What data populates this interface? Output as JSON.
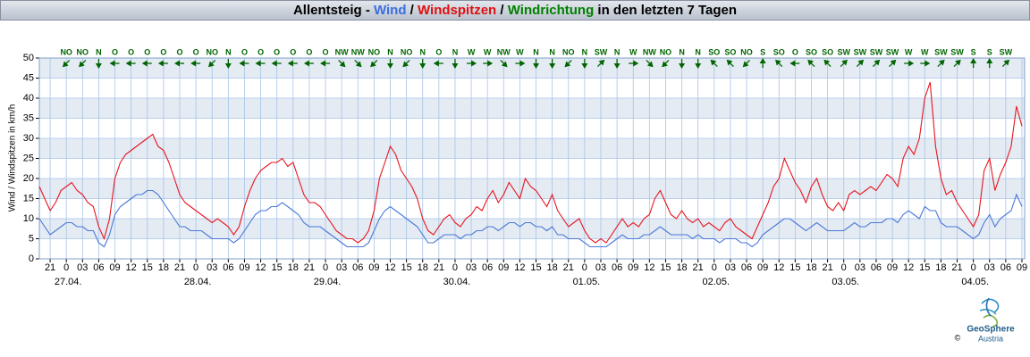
{
  "chart_data": {
    "type": "line",
    "title": [
      {
        "text": "Allentsteig - ",
        "color": "#000000"
      },
      {
        "text": "Wind",
        "color": "#3a6fe0"
      },
      {
        "text": " / ",
        "color": "#000000"
      },
      {
        "text": "Windspitzen",
        "color": "#e01010"
      },
      {
        "text": " / ",
        "color": "#000000"
      },
      {
        "text": "Windrichtung",
        "color": "#008000"
      },
      {
        "text": " in den letzten 7 Tagen",
        "color": "#000000"
      }
    ],
    "y_label": "Wind / Windspitzen in km/h",
    "ylim": [
      0,
      50
    ],
    "yticks": [
      0,
      5,
      10,
      15,
      20,
      25,
      30,
      35,
      40,
      45,
      50
    ],
    "grid": true,
    "banded": true,
    "xlim": [
      -5,
      177.5
    ],
    "xticks": [
      {
        "value": -3,
        "label": "21"
      },
      0,
      {
        "value": 3,
        "label": "03"
      },
      {
        "value": 6,
        "label": "06"
      },
      {
        "value": 9,
        "label": "09"
      },
      12,
      15,
      18,
      21,
      {
        "value": 24,
        "label": "0"
      },
      {
        "value": 27,
        "label": "03"
      },
      {
        "value": 30,
        "label": "06"
      },
      {
        "value": 33,
        "label": "09"
      },
      {
        "value": 36,
        "label": "12"
      },
      {
        "value": 39,
        "label": "15"
      },
      {
        "value": 42,
        "label": "18"
      },
      {
        "value": 45,
        "label": "21"
      },
      {
        "value": 48,
        "label": "0"
      },
      {
        "value": 51,
        "label": "03"
      },
      {
        "value": 54,
        "label": "06"
      },
      {
        "value": 57,
        "label": "09"
      },
      {
        "value": 60,
        "label": "12"
      },
      {
        "value": 63,
        "label": "15"
      },
      {
        "value": 66,
        "label": "18"
      },
      {
        "value": 69,
        "label": "21"
      },
      {
        "value": 72,
        "label": "0"
      },
      {
        "value": 75,
        "label": "03"
      },
      {
        "value": 78,
        "label": "06"
      },
      {
        "value": 81,
        "label": "09"
      },
      {
        "value": 84,
        "label": "12"
      },
      {
        "value": 87,
        "label": "15"
      },
      {
        "value": 90,
        "label": "18"
      },
      {
        "value": 93,
        "label": "21"
      },
      {
        "value": 96,
        "label": "0"
      },
      {
        "value": 99,
        "label": "03"
      },
      {
        "value": 102,
        "label": "06"
      },
      {
        "value": 105,
        "label": "09"
      },
      {
        "value": 108,
        "label": "12"
      },
      {
        "value": 111,
        "label": "15"
      },
      {
        "value": 114,
        "label": "18"
      },
      {
        "value": 117,
        "label": "21"
      },
      {
        "value": 120,
        "label": "0"
      },
      {
        "value": 123,
        "label": "03"
      },
      {
        "value": 126,
        "label": "06"
      },
      {
        "value": 129,
        "label": "09"
      },
      {
        "value": 132,
        "label": "12"
      },
      {
        "value": 135,
        "label": "15"
      },
      {
        "value": 138,
        "label": "18"
      },
      {
        "value": 141,
        "label": "21"
      },
      {
        "value": 144,
        "label": "0"
      },
      {
        "value": 147,
        "label": "03"
      },
      {
        "value": 150,
        "label": "06"
      },
      {
        "value": 153,
        "label": "09"
      },
      {
        "value": 156,
        "label": "12"
      },
      {
        "value": 159,
        "label": "15"
      },
      {
        "value": 162,
        "label": "18"
      },
      {
        "value": 165,
        "label": "21"
      },
      {
        "value": 168,
        "label": "0"
      },
      {
        "value": 171,
        "label": "03"
      },
      {
        "value": 174,
        "label": "06"
      },
      {
        "value": 177,
        "label": "09"
      }
    ],
    "date_ticks": [
      {
        "value": 0,
        "label": "27.04."
      },
      {
        "value": 24,
        "label": "28.04."
      },
      {
        "value": 48,
        "label": "29.04."
      },
      {
        "value": 72,
        "label": "30.04."
      },
      {
        "value": 96,
        "label": "01.05."
      },
      {
        "value": 120,
        "label": "02.05."
      },
      {
        "value": 144,
        "label": "03.05."
      },
      {
        "value": 168,
        "label": "04.05."
      }
    ],
    "x": [
      -5,
      -4,
      -3,
      -2,
      -1,
      0,
      1,
      2,
      3,
      4,
      5,
      6,
      7,
      8,
      9,
      10,
      11,
      12,
      13,
      14,
      15,
      16,
      17,
      18,
      19,
      20,
      21,
      22,
      23,
      24,
      25,
      26,
      27,
      28,
      29,
      30,
      31,
      32,
      33,
      34,
      35,
      36,
      37,
      38,
      39,
      40,
      41,
      42,
      43,
      44,
      45,
      46,
      47,
      48,
      49,
      50,
      51,
      52,
      53,
      54,
      55,
      56,
      57,
      58,
      59,
      60,
      61,
      62,
      63,
      64,
      65,
      66,
      67,
      68,
      69,
      70,
      71,
      72,
      73,
      74,
      75,
      76,
      77,
      78,
      79,
      80,
      81,
      82,
      83,
      84,
      85,
      86,
      87,
      88,
      89,
      90,
      91,
      92,
      93,
      94,
      95,
      96,
      97,
      98,
      99,
      100,
      101,
      102,
      103,
      104,
      105,
      106,
      107,
      108,
      109,
      110,
      111,
      112,
      113,
      114,
      115,
      116,
      117,
      118,
      119,
      120,
      121,
      122,
      123,
      124,
      125,
      126,
      127,
      128,
      129,
      130,
      131,
      132,
      133,
      134,
      135,
      136,
      137,
      138,
      139,
      140,
      141,
      142,
      143,
      144,
      145,
      146,
      147,
      148,
      149,
      150,
      151,
      152,
      153,
      154,
      155,
      156,
      157,
      158,
      159,
      160,
      161,
      162,
      163,
      164,
      165,
      166,
      167,
      168,
      169,
      170,
      171,
      172,
      173,
      174,
      175,
      176,
      177
    ],
    "series": [
      {
        "name": "Windspitzen",
        "color": "#e8141e",
        "values": [
          18,
          15,
          12,
          14,
          17,
          18,
          19,
          17,
          16,
          14,
          13,
          8,
          5,
          10,
          20,
          24,
          26,
          27,
          28,
          29,
          30,
          31,
          28,
          27,
          24,
          20,
          16,
          14,
          13,
          12,
          11,
          10,
          9,
          10,
          9,
          8,
          6,
          8,
          13,
          17,
          20,
          22,
          23,
          24,
          24,
          25,
          23,
          24,
          20,
          16,
          14,
          14,
          13,
          11,
          9,
          7,
          6,
          5,
          5,
          4,
          5,
          7,
          12,
          20,
          24,
          28,
          26,
          22,
          20,
          18,
          15,
          10,
          7,
          6,
          8,
          10,
          11,
          9,
          8,
          10,
          11,
          13,
          12,
          15,
          17,
          14,
          16,
          19,
          17,
          15,
          20,
          18,
          17,
          15,
          13,
          16,
          12,
          10,
          8,
          9,
          10,
          7,
          5,
          4,
          5,
          4,
          6,
          8,
          10,
          8,
          9,
          8,
          10,
          11,
          15,
          17,
          14,
          11,
          10,
          12,
          10,
          9,
          10,
          8,
          9,
          8,
          7,
          9,
          10,
          8,
          7,
          6,
          5,
          8,
          11,
          14,
          18,
          20,
          25,
          22,
          19,
          17,
          14,
          18,
          20,
          16,
          13,
          12,
          14,
          12,
          16,
          17,
          16,
          17,
          18,
          17,
          19,
          21,
          20,
          18,
          25,
          28,
          26,
          30,
          40,
          44,
          28,
          20,
          16,
          17,
          14,
          12,
          10,
          8,
          11,
          22,
          25,
          17,
          21,
          24,
          28,
          38,
          33
        ]
      },
      {
        "name": "Wind",
        "color": "#4a78d8",
        "values": [
          10,
          8,
          6,
          7,
          8,
          9,
          9,
          8,
          8,
          7,
          7,
          4,
          3,
          6,
          11,
          13,
          14,
          15,
          16,
          16,
          17,
          17,
          16,
          14,
          12,
          10,
          8,
          8,
          7,
          7,
          7,
          6,
          5,
          5,
          5,
          5,
          4,
          5,
          7,
          9,
          11,
          12,
          12,
          13,
          13,
          14,
          13,
          12,
          11,
          9,
          8,
          8,
          8,
          7,
          6,
          5,
          4,
          3,
          3,
          3,
          3,
          4,
          7,
          10,
          12,
          13,
          12,
          11,
          10,
          9,
          8,
          6,
          4,
          4,
          5,
          6,
          6,
          6,
          5,
          6,
          6,
          7,
          7,
          8,
          8,
          7,
          8,
          9,
          9,
          8,
          9,
          9,
          8,
          8,
          7,
          8,
          6,
          6,
          5,
          5,
          5,
          4,
          3,
          3,
          3,
          3,
          4,
          5,
          6,
          5,
          5,
          5,
          6,
          6,
          7,
          8,
          7,
          6,
          6,
          6,
          6,
          5,
          6,
          5,
          5,
          5,
          4,
          5,
          5,
          5,
          4,
          4,
          3,
          4,
          6,
          7,
          8,
          9,
          10,
          10,
          9,
          8,
          7,
          8,
          9,
          8,
          7,
          7,
          7,
          7,
          8,
          9,
          8,
          8,
          9,
          9,
          9,
          10,
          10,
          9,
          11,
          12,
          11,
          10,
          13,
          12,
          12,
          9,
          8,
          8,
          8,
          7,
          6,
          5,
          6,
          9,
          11,
          8,
          10,
          11,
          12,
          16,
          13
        ]
      }
    ],
    "directions": {
      "x": [
        0,
        3,
        6,
        9,
        12,
        15,
        18,
        21,
        24,
        27,
        30,
        33,
        36,
        39,
        42,
        45,
        48,
        51,
        54,
        57,
        60,
        63,
        66,
        69,
        72,
        75,
        78,
        81,
        84,
        87,
        90,
        93,
        96,
        99,
        102,
        105,
        108,
        111,
        114,
        117,
        120,
        123,
        126,
        129,
        132,
        135,
        138,
        141,
        144,
        147,
        150,
        153,
        156,
        159,
        162,
        165,
        168,
        171,
        174
      ],
      "labels": [
        "NO",
        "NO",
        "N",
        "O",
        "O",
        "O",
        "O",
        "O",
        "O",
        "NO",
        "N",
        "O",
        "O",
        "O",
        "O",
        "O",
        "O",
        "NW",
        "NW",
        "NO",
        "N",
        "NO",
        "N",
        "O",
        "N",
        "W",
        "W",
        "NW",
        "W",
        "N",
        "N",
        "NO",
        "N",
        "SW",
        "N",
        "W",
        "NW",
        "NO",
        "N",
        "N",
        "SO",
        "SO",
        "NO",
        "S",
        "SO",
        "O",
        "SO",
        "SO",
        "SW",
        "SW",
        "SW",
        "SW",
        "W",
        "W",
        "SW",
        "SW",
        "S",
        "S",
        "SW"
      ],
      "color": "#006400"
    },
    "logo": {
      "name": "GeoSphere",
      "sub": "Austria",
      "copyright": "©"
    }
  }
}
